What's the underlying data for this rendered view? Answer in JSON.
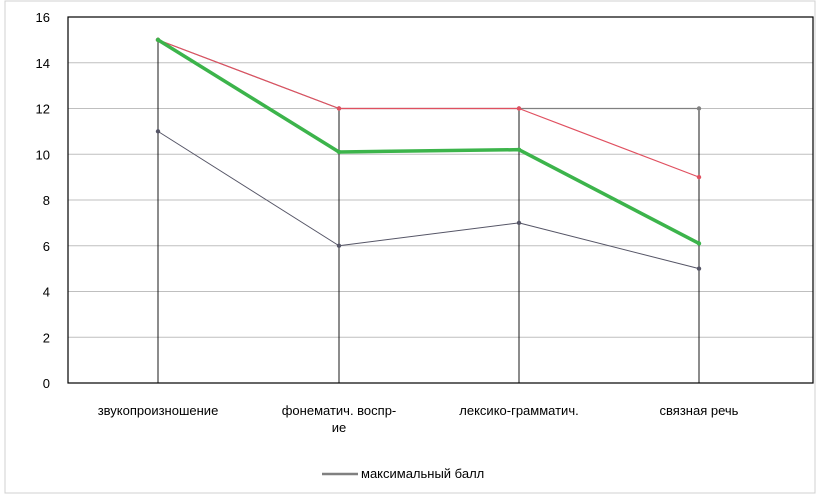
{
  "chart_data": {
    "type": "line",
    "categories": [
      [
        "звукопроизношение"
      ],
      [
        "фонематич. воспр-",
        "ие"
      ],
      [
        "лексико-грамматич."
      ],
      [
        "связная речь"
      ]
    ],
    "ylim": [
      0,
      16
    ],
    "yticks": [
      "0",
      "2",
      "4",
      "6",
      "8",
      "10",
      "12",
      "14",
      "16"
    ],
    "grid": true,
    "series": [
      {
        "name": "максимальный балл",
        "values": [
          15,
          12,
          12,
          12
        ],
        "color": "#808080"
      },
      {
        "values": [
          15,
          12,
          12,
          9
        ],
        "color": "#e05060"
      },
      {
        "values": [
          15,
          10.1,
          10.2,
          6.1
        ],
        "color": "#3cb44b"
      },
      {
        "values": [
          11,
          6,
          7,
          5
        ],
        "color": "#555566"
      }
    ],
    "legend": {
      "position": "bottom-center",
      "label": "максимальный балл",
      "color": "#808080"
    }
  }
}
